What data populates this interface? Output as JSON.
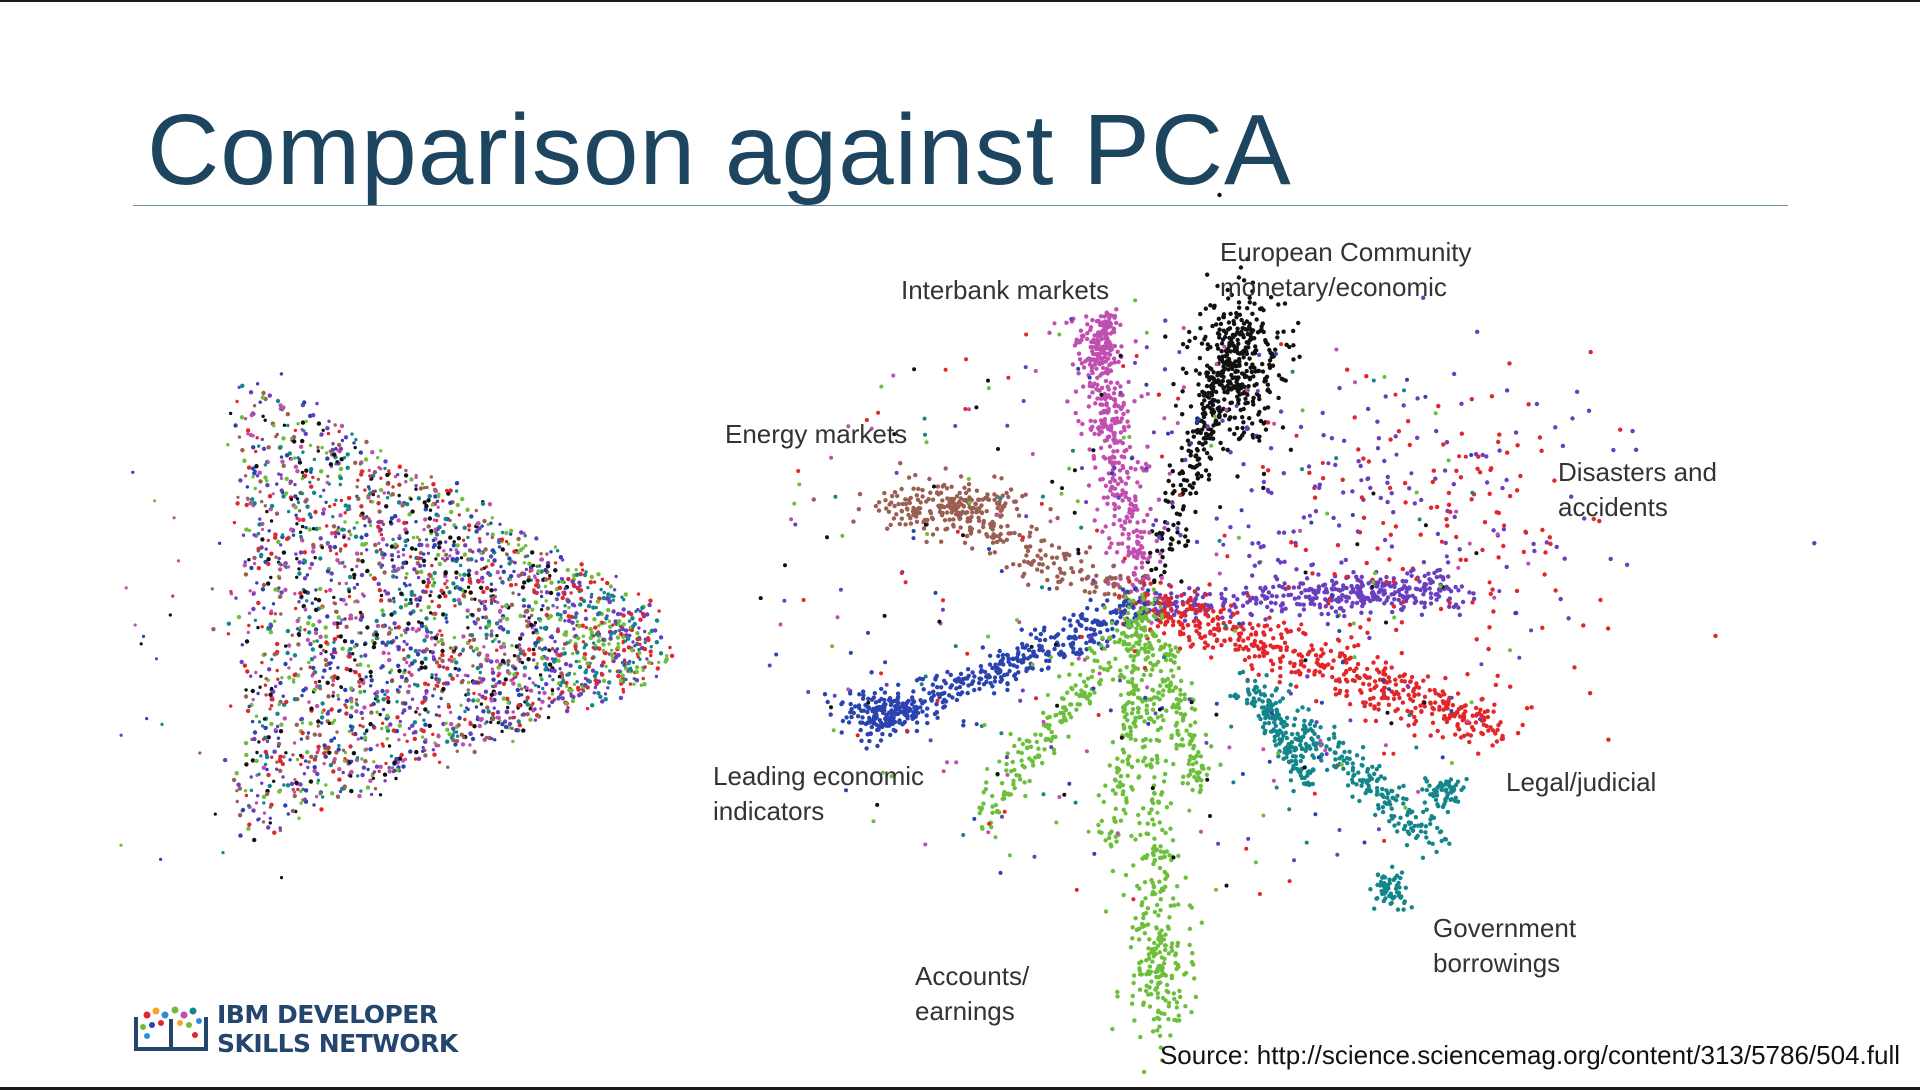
{
  "slide": {
    "title": "Comparison against PCA",
    "source": "Source: http://science.sciencemag.org/content/313/5786/504.full"
  },
  "logo": {
    "line1": "IBM DEVELOPER",
    "line2": "SKILLS NETWORK"
  },
  "chart_data": [
    {
      "type": "scatter",
      "panel": "left",
      "title": "",
      "series": []
    },
    {
      "type": "scatter",
      "panel": "right",
      "title": "",
      "annotations": [
        "European Community monetary/economic",
        "Interbank markets",
        "Energy markets",
        "Disasters and accidents",
        "Leading economic indicators",
        "Legal/judicial",
        "Accounts/ earnings",
        "Government borrowings"
      ],
      "series": []
    }
  ],
  "labels": {
    "european": [
      "European Community",
      "monetary/economic"
    ],
    "interbank": "Interbank markets",
    "energy": "Energy markets",
    "disasters": [
      "Disasters and",
      "accidents"
    ],
    "leading": [
      "Leading economic",
      "indicators"
    ],
    "legal": "Legal/judicial",
    "accounts": [
      "Accounts/",
      "earnings"
    ],
    "government": [
      "Government",
      "borrowings"
    ]
  },
  "colors": {
    "title": "#1d4560",
    "black": "#111111",
    "magenta": "#c04fb0",
    "brown": "#9a5f52",
    "purple": "#6a3fbf",
    "red": "#e2262a",
    "blue": "#2b43b0",
    "green": "#6cbf3a",
    "teal": "#13868a"
  }
}
